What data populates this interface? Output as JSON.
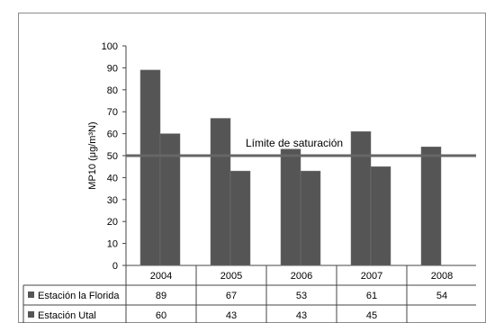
{
  "chart_data": {
    "type": "bar",
    "categories": [
      "2004",
      "2005",
      "2006",
      "2007",
      "2008"
    ],
    "series": [
      {
        "name": "Estación la Florida",
        "values": [
          89,
          67,
          53,
          61,
          54
        ],
        "color": "#555555"
      },
      {
        "name": "Estación Utal",
        "values": [
          60,
          43,
          43,
          45,
          null
        ],
        "color": "#555555"
      }
    ],
    "series_labels": [
      [
        "89",
        "67",
        "53",
        "61",
        "54"
      ],
      [
        "60",
        "43",
        "43",
        "45",
        ""
      ]
    ],
    "ylabel": "MP10 (μg/m³N)",
    "ylim": [
      0,
      100
    ],
    "yticks": [
      0,
      10,
      20,
      30,
      40,
      50,
      60,
      70,
      80,
      90,
      100
    ],
    "threshold": {
      "value": 50,
      "label": "Límite de saturación"
    },
    "grid": false,
    "legend": "data-table-below"
  }
}
